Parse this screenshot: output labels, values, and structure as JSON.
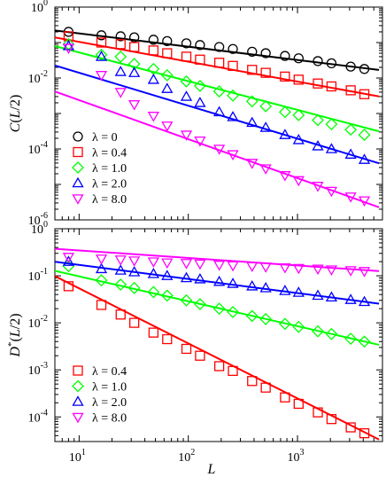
{
  "chart_data": [
    {
      "type": "scatter",
      "xlabel": "",
      "ylabel_parts": [
        "C",
        "(",
        "L",
        "/2)"
      ],
      "xscale": "log",
      "yscale": "log",
      "xlim": [
        6,
        6000
      ],
      "ylim": [
        1e-06,
        1
      ],
      "x_ticks": [
        {
          "v": 10,
          "m": "1"
        },
        {
          "v": 100,
          "m": "2"
        },
        {
          "v": 1000,
          "m": "3"
        }
      ],
      "y_ticks": [
        {
          "v": 1,
          "m": "0"
        },
        {
          "v": 0.01,
          "m": "-2"
        },
        {
          "v": 0.0001,
          "m": "-4"
        },
        {
          "v": 1e-06,
          "m": "-6"
        }
      ],
      "grid": false,
      "legend_position": "bottom-left",
      "series": [
        {
          "name": "λ = 0",
          "marker": "circle",
          "color": "#000000",
          "x": [
            8,
            16,
            24,
            32,
            48,
            64,
            96,
            128,
            192,
            256,
            384,
            512,
            768,
            1024,
            1536,
            2048,
            3072,
            4096
          ],
          "y": [
            0.2,
            0.16,
            0.15,
            0.14,
            0.12,
            0.11,
            0.095,
            0.085,
            0.075,
            0.066,
            0.055,
            0.05,
            0.042,
            0.036,
            0.03,
            0.026,
            0.021,
            0.018
          ],
          "fit": {
            "a": 0.43,
            "b": -0.375
          }
        },
        {
          "name": "λ = 0.4",
          "marker": "square",
          "color": "#ff0000",
          "x": [
            8,
            16,
            24,
            32,
            48,
            64,
            96,
            128,
            192,
            256,
            384,
            512,
            768,
            1024,
            1536,
            2048,
            3072,
            4096
          ],
          "y": [
            0.15,
            0.1,
            0.09,
            0.075,
            0.06,
            0.05,
            0.04,
            0.033,
            0.027,
            0.022,
            0.017,
            0.014,
            0.011,
            0.009,
            0.007,
            0.0058,
            0.0045,
            0.0035
          ],
          "fit": {
            "a": 0.38,
            "b": -0.56
          }
        },
        {
          "name": "λ = 1.0",
          "marker": "diamond",
          "color": "#00ff00",
          "x": [
            8,
            16,
            24,
            32,
            48,
            64,
            96,
            128,
            192,
            256,
            384,
            512,
            768,
            1024,
            1536,
            2048,
            3072,
            4096
          ],
          "y": [
            0.09,
            0.045,
            0.04,
            0.025,
            0.018,
            0.012,
            0.008,
            0.006,
            0.0042,
            0.0032,
            0.0022,
            0.0016,
            0.0011,
            0.0009,
            0.00065,
            0.0005,
            0.00035,
            0.00025
          ],
          "fit": {
            "a": 0.34,
            "b": -0.81
          }
        },
        {
          "name": "λ = 2.0",
          "marker": "triangle-up",
          "color": "#0000ff",
          "x": [
            8,
            16,
            24,
            32,
            48,
            64,
            96,
            128,
            192,
            256,
            384,
            512,
            768,
            1024,
            1536,
            2048,
            3072,
            4096
          ],
          "y": [
            0.08,
            0.04,
            0.015,
            0.014,
            0.009,
            0.005,
            0.003,
            0.002,
            0.0011,
            0.0008,
            0.00055,
            0.0004,
            0.00025,
            0.00018,
            0.00012,
            0.0001,
            7e-05,
            5e-05
          ],
          "fit": {
            "a": 0.12,
            "b": -0.93
          }
        },
        {
          "name": "λ = 8.0",
          "marker": "triangle-down",
          "color": "#ff00ff",
          "x": [
            8,
            16,
            24,
            32,
            48,
            64,
            96,
            128,
            192,
            256,
            384,
            512,
            768,
            1024,
            1536,
            2048,
            3072,
            4096
          ],
          "y": [
            0.07,
            0.012,
            0.004,
            0.0018,
            0.00085,
            0.00045,
            0.00025,
            0.00017,
            0.0001,
            7e-05,
            4e-05,
            2.8e-05,
            1.8e-05,
            1.3e-05,
            9e-06,
            6.5e-06,
            4.5e-06,
            3.5e-06
          ],
          "fit": {
            "a": 0.03,
            "b": -1.1
          }
        }
      ]
    },
    {
      "type": "scatter",
      "xlabel": "L",
      "ylabel_parts": [
        "D",
        "*",
        "(",
        "L",
        "/2)"
      ],
      "xscale": "log",
      "yscale": "log",
      "xlim": [
        6,
        6000
      ],
      "ylim": [
        3e-05,
        1
      ],
      "x_ticks": [
        {
          "v": 10,
          "m": "1"
        },
        {
          "v": 100,
          "m": "2"
        },
        {
          "v": 1000,
          "m": "3"
        }
      ],
      "y_ticks": [
        {
          "v": 1,
          "m": "0"
        },
        {
          "v": 0.1,
          "m": "-1"
        },
        {
          "v": 0.01,
          "m": "-2"
        },
        {
          "v": 0.001,
          "m": "-3"
        },
        {
          "v": 0.0001,
          "m": "-4"
        }
      ],
      "grid": false,
      "legend_position": "bottom-left",
      "series": [
        {
          "name": "λ = 0.4",
          "marker": "square",
          "color": "#ff0000",
          "x": [
            8,
            16,
            24,
            32,
            48,
            64,
            96,
            128,
            192,
            256,
            384,
            512,
            768,
            1024,
            1536,
            2048,
            3072,
            4096
          ],
          "y": [
            0.06,
            0.024,
            0.015,
            0.01,
            0.0062,
            0.0045,
            0.0028,
            0.002,
            0.0012,
            0.00095,
            0.00058,
            0.00042,
            0.00026,
            0.00019,
            0.000125,
            9e-05,
            6e-05,
            4.5e-05
          ],
          "fit": {
            "a": 0.8,
            "b": -1.17
          }
        },
        {
          "name": "λ = 1.0",
          "marker": "diamond",
          "color": "#00ff00",
          "x": [
            8,
            16,
            24,
            32,
            48,
            64,
            96,
            128,
            192,
            256,
            384,
            512,
            768,
            1024,
            1536,
            2048,
            3072,
            4096
          ],
          "y": [
            0.16,
            0.08,
            0.065,
            0.055,
            0.045,
            0.038,
            0.03,
            0.025,
            0.02,
            0.017,
            0.014,
            0.012,
            0.0095,
            0.0082,
            0.0066,
            0.0058,
            0.0046,
            0.004
          ],
          "fit": {
            "a": 0.33,
            "b": -0.53
          }
        },
        {
          "name": "λ = 2.0",
          "marker": "triangle-up",
          "color": "#0000ff",
          "x": [
            8,
            16,
            24,
            32,
            48,
            64,
            96,
            128,
            192,
            256,
            384,
            512,
            768,
            1024,
            1536,
            2048,
            3072,
            4096
          ],
          "y": [
            0.2,
            0.14,
            0.13,
            0.12,
            0.11,
            0.1,
            0.09,
            0.085,
            0.075,
            0.068,
            0.06,
            0.055,
            0.048,
            0.044,
            0.038,
            0.035,
            0.031,
            0.028
          ],
          "fit": {
            "a": 0.34,
            "b": -0.3
          }
        },
        {
          "name": "λ = 8.0",
          "marker": "triangle-down",
          "color": "#ff00ff",
          "x": [
            8,
            16,
            24,
            32,
            48,
            64,
            96,
            128,
            192,
            256,
            384,
            512,
            768,
            1024,
            1536,
            2048,
            3072,
            4096
          ],
          "y": [
            0.25,
            0.23,
            0.22,
            0.21,
            0.2,
            0.19,
            0.185,
            0.18,
            0.17,
            0.165,
            0.16,
            0.155,
            0.15,
            0.145,
            0.14,
            0.135,
            0.13,
            0.125
          ],
          "fit": {
            "a": 0.5,
            "b": -0.16
          }
        }
      ]
    }
  ]
}
